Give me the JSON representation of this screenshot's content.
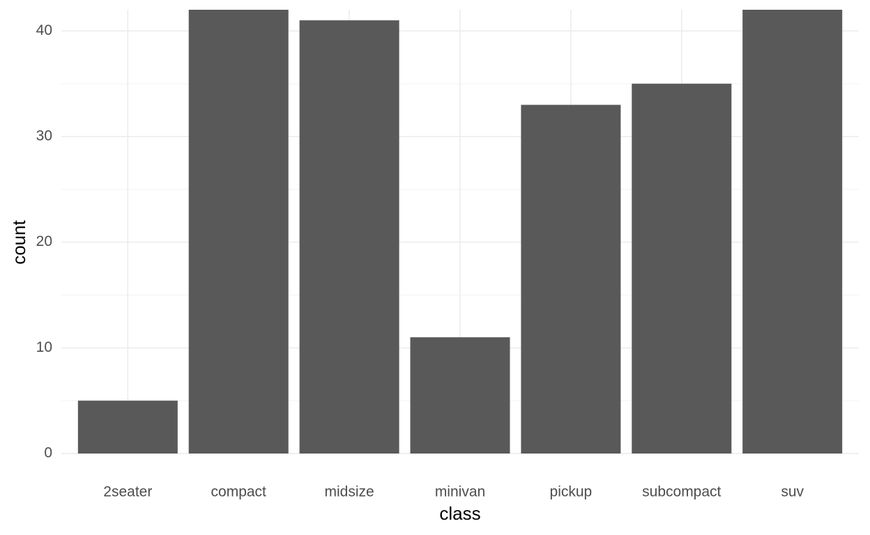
{
  "chart_data": {
    "type": "bar",
    "x_label": "class",
    "y_label": "count",
    "categories": [
      "2seater",
      "compact",
      "midsize",
      "minivan",
      "pickup",
      "subcompact",
      "suv"
    ],
    "values": [
      5,
      42,
      41,
      11,
      33,
      35,
      42
    ],
    "color": "#595959",
    "ylim": [
      0,
      42
    ],
    "yticks": [
      0,
      10,
      20,
      30,
      40
    ],
    "grid": true
  }
}
